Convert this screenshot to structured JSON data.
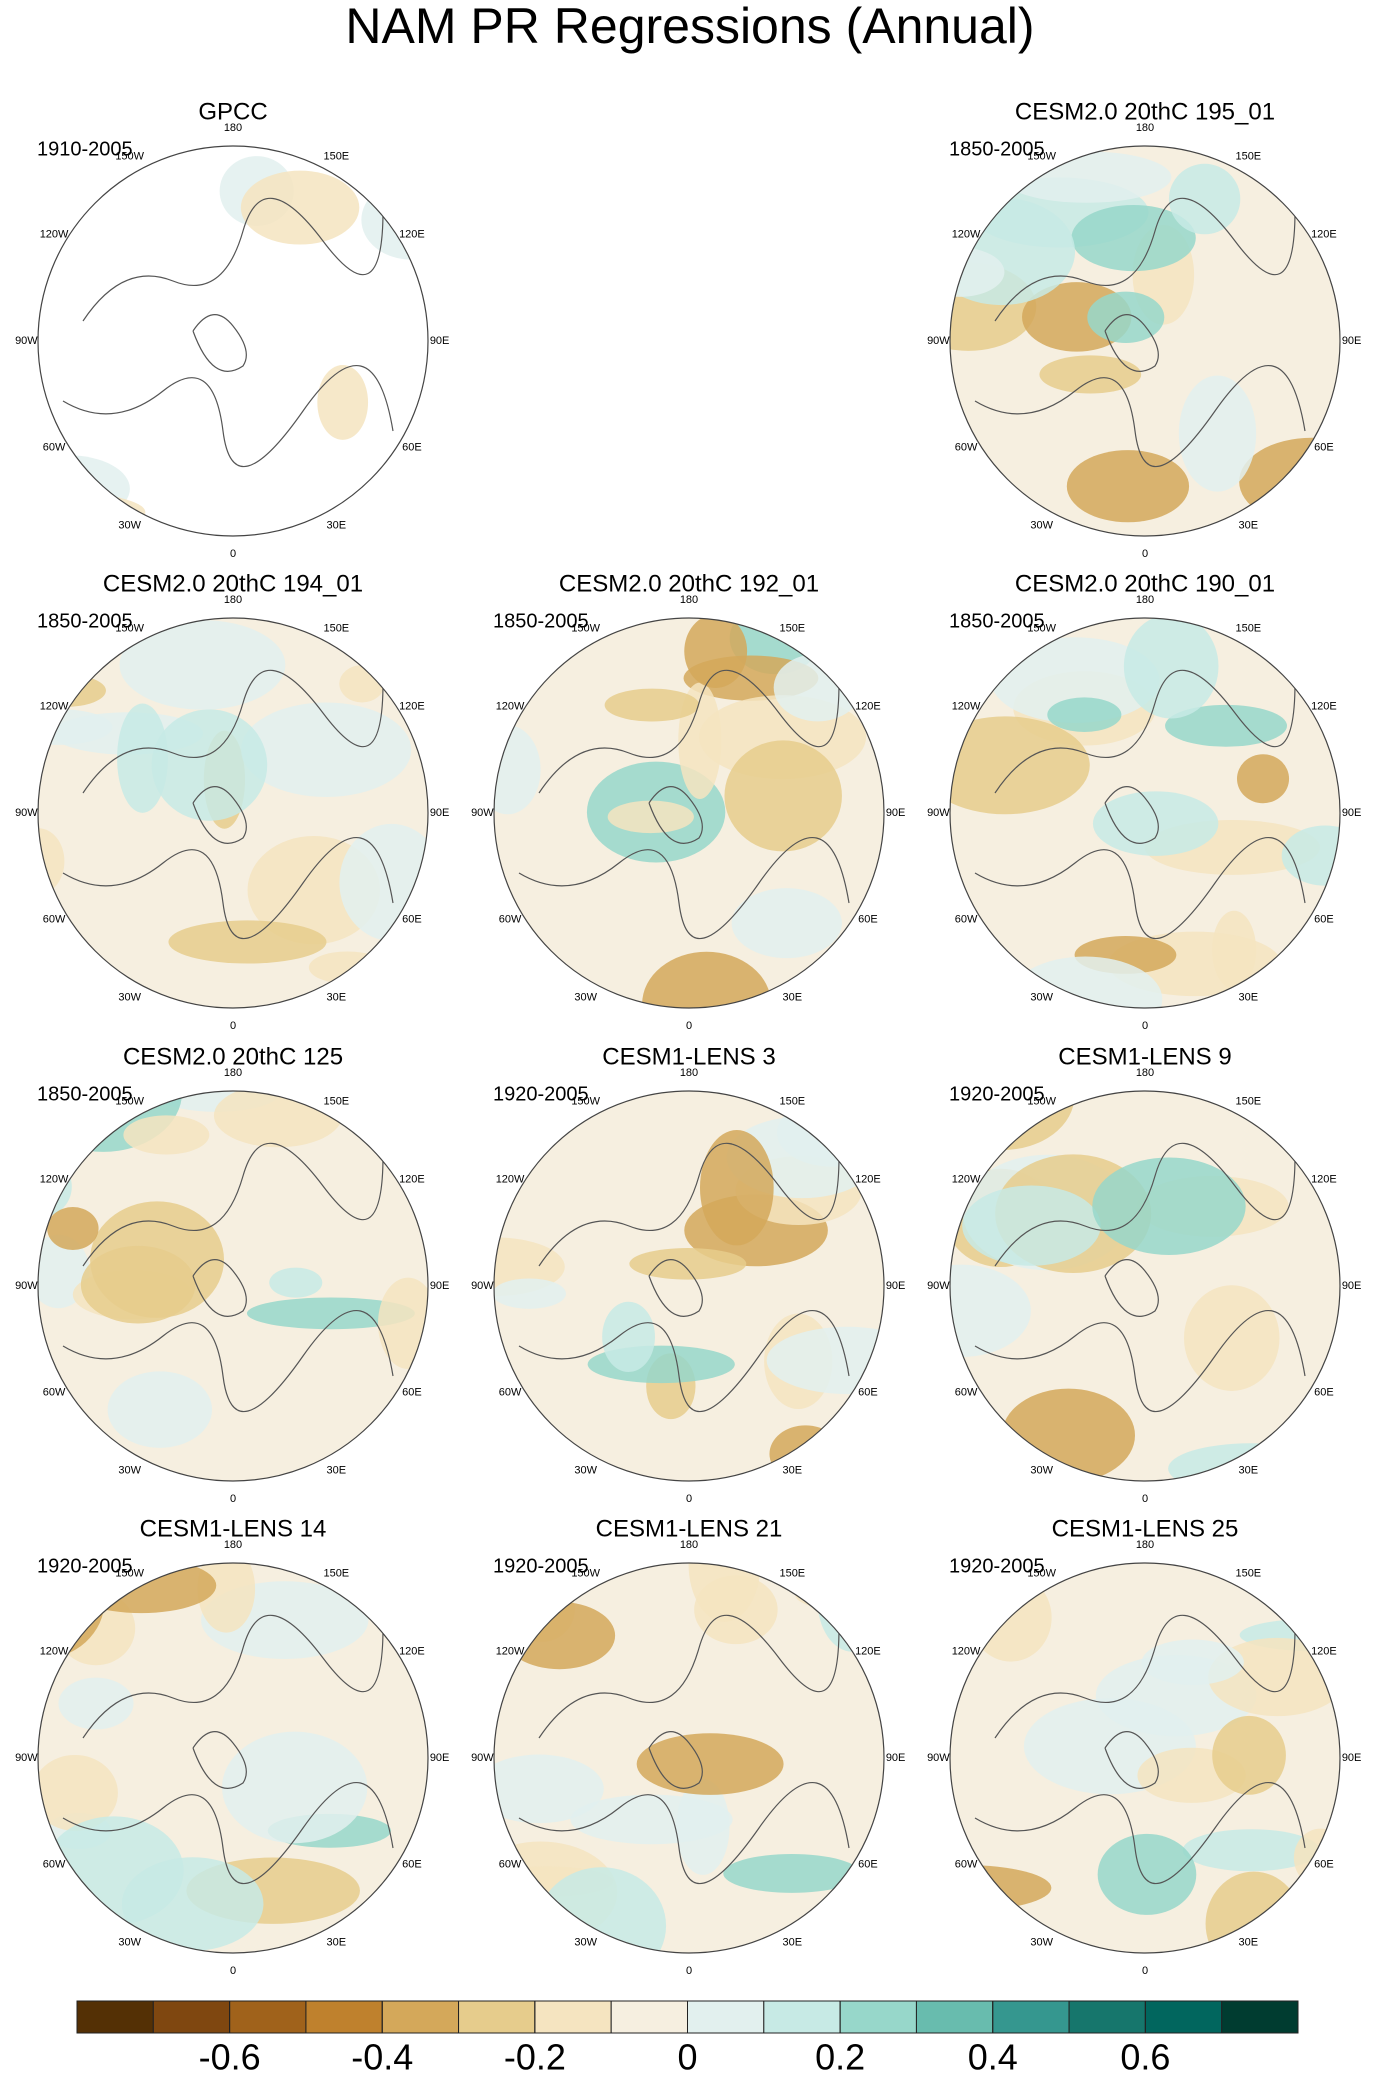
{
  "title": "NAM PR Regressions (Annual)",
  "longitude_labels": [
    {
      "lon": 180,
      "label": "180"
    },
    {
      "lon": 150,
      "label": "150E"
    },
    {
      "lon": 120,
      "label": "120E"
    },
    {
      "lon": 90,
      "label": "90E"
    },
    {
      "lon": 60,
      "label": "60E"
    },
    {
      "lon": 30,
      "label": "30E"
    },
    {
      "lon": 0,
      "label": "0"
    },
    {
      "lon": -30,
      "label": "30W"
    },
    {
      "lon": -60,
      "label": "60W"
    },
    {
      "lon": -90,
      "label": "90W"
    },
    {
      "lon": -120,
      "label": "120W"
    },
    {
      "lon": -150,
      "label": "150W"
    }
  ],
  "panels": [
    {
      "title": "GPCC",
      "period": "1910-2005",
      "row": 0,
      "col": 0
    },
    {
      "title": "CESM2.0 20thC 195_01",
      "period": "1850-2005",
      "row": 0,
      "col": 2
    },
    {
      "title": "CESM2.0 20thC 194_01",
      "period": "1850-2005",
      "row": 1,
      "col": 0
    },
    {
      "title": "CESM2.0 20thC 192_01",
      "period": "1850-2005",
      "row": 1,
      "col": 1
    },
    {
      "title": "CESM2.0 20thC 190_01",
      "period": "1850-2005",
      "row": 1,
      "col": 2
    },
    {
      "title": "CESM2.0 20thC 125",
      "period": "1850-2005",
      "row": 2,
      "col": 0
    },
    {
      "title": "CESM1-LENS 3",
      "period": "1920-2005",
      "row": 2,
      "col": 1
    },
    {
      "title": "CESM1-LENS 9",
      "period": "1920-2005",
      "row": 2,
      "col": 2
    },
    {
      "title": "CESM1-LENS 14",
      "period": "1920-2005",
      "row": 3,
      "col": 0
    },
    {
      "title": "CESM1-LENS 21",
      "period": "1920-2005",
      "row": 3,
      "col": 1
    },
    {
      "title": "CESM1-LENS 25",
      "period": "1920-2005",
      "row": 3,
      "col": 2
    }
  ],
  "colorbar": {
    "lim": [
      -0.8,
      0.8
    ],
    "ticks": [
      -0.6,
      -0.4,
      -0.2,
      0,
      0.2,
      0.4,
      0.6
    ],
    "colors": [
      "#543005",
      "#7f4710",
      "#a0621b",
      "#bf812d",
      "#d4a85a",
      "#e6cc8c",
      "#f5e4c0",
      "#f6efe0",
      "#e2f0ee",
      "#c7eae5",
      "#97d7ca",
      "#68bcae",
      "#35978f",
      "#16766c",
      "#01665e",
      "#003c30"
    ]
  }
}
